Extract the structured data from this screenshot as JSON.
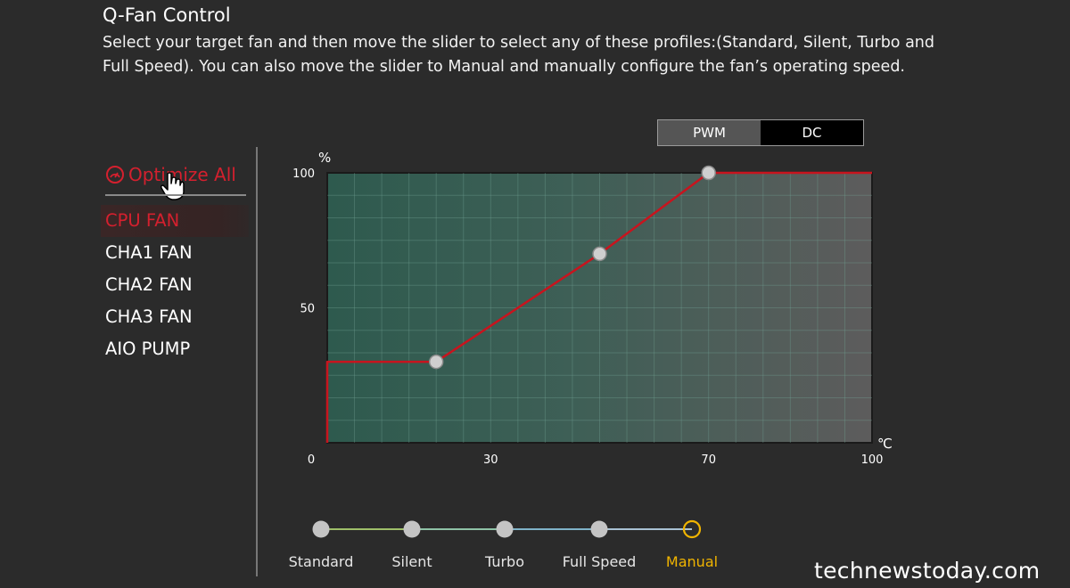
{
  "header": {
    "title": "Q-Fan Control",
    "description": "Select your target fan and then move the slider to select any of these profiles:(Standard, Silent, Turbo and Full Speed). You can also move the slider to Manual and manually configure the fan’s operating speed."
  },
  "sidebar": {
    "optimize_label": "Optimize All",
    "fans": [
      {
        "label": "CPU FAN",
        "active": true
      },
      {
        "label": "CHA1 FAN",
        "active": false
      },
      {
        "label": "CHA2 FAN",
        "active": false
      },
      {
        "label": "CHA3 FAN",
        "active": false
      },
      {
        "label": "AIO PUMP",
        "active": false
      }
    ]
  },
  "mode_toggle": {
    "options": [
      "PWM",
      "DC"
    ],
    "selected": "PWM"
  },
  "chart_data": {
    "type": "line",
    "ylabel": "%",
    "xlabel": "℃",
    "xlim": [
      0,
      100
    ],
    "ylim": [
      0,
      100
    ],
    "x_ticks": [
      0,
      30,
      70,
      100
    ],
    "y_ticks": [
      50,
      100
    ],
    "grid": true,
    "series": [
      {
        "points": [
          [
            0,
            0
          ],
          [
            0,
            30
          ],
          [
            20,
            30
          ],
          [
            50,
            70
          ],
          [
            70,
            100
          ],
          [
            100,
            100
          ]
        ],
        "control_points": [
          [
            20,
            30
          ],
          [
            50,
            70
          ],
          [
            70,
            100
          ]
        ]
      }
    ]
  },
  "profiles": {
    "options": [
      "Standard",
      "Silent",
      "Turbo",
      "Full Speed",
      "Manual"
    ],
    "selected": "Manual"
  },
  "watermark": "technewstoday.com",
  "colors": {
    "background": "#2b2b2b",
    "accent_red": "#d4202e",
    "selected_profile": "#f0b400"
  }
}
